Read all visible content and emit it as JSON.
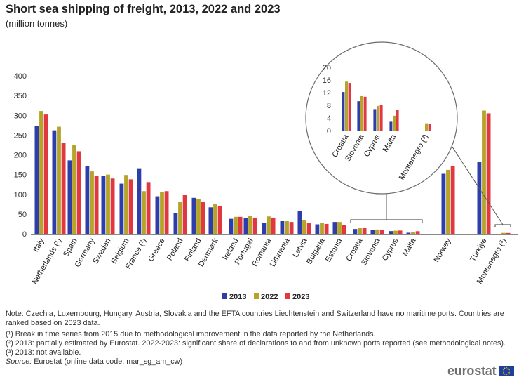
{
  "title": "Short sea shipping of freight, 2013, 2022 and 2023",
  "subtitle": "(million tonnes)",
  "colors": {
    "s2013": "#2E3DA8",
    "s2022": "#B5A42A",
    "s2023": "#E1383F",
    "axis": "#888888",
    "grid": "#dddddd"
  },
  "chart_data": {
    "type": "bar",
    "title": "Short sea shipping of freight, 2013, 2022 and 2023",
    "ylabel": "million tonnes",
    "ylim": [
      0,
      400
    ],
    "yticks": [
      0,
      50,
      100,
      150,
      200,
      250,
      300,
      350,
      400
    ],
    "categories": [
      "Italy",
      "Netherlands (¹)",
      "Spain",
      "Germany",
      "Sweden",
      "Belgium",
      "France (²)",
      "Greece",
      "Poland",
      "Finland",
      "Denmark",
      "Ireland",
      "Portugal",
      "Romania",
      "Lithuania",
      "Latvia",
      "Bulgaria",
      "Estonia",
      "Croatia",
      "Slovenia",
      "Cyprus",
      "Malta",
      "Norway",
      "Türkiye",
      "Montenegro (³)"
    ],
    "series": [
      {
        "name": "2013",
        "values": [
          272,
          262,
          186,
          171,
          146,
          127,
          166,
          95,
          53,
          91,
          67,
          38,
          40,
          27,
          32,
          57,
          24,
          30,
          12.2,
          9.3,
          6.8,
          2.8,
          152,
          183,
          null
        ]
      },
      {
        "name": "2022",
        "values": [
          311,
          271,
          225,
          158,
          150,
          149,
          108,
          106,
          81,
          88,
          75,
          43,
          45,
          44,
          32,
          35,
          27,
          30,
          15.5,
          10.9,
          7.8,
          4.7,
          162,
          312,
          2.3
        ]
      },
      {
        "name": "2023",
        "values": [
          302,
          231,
          209,
          147,
          140,
          138,
          131,
          108,
          99,
          80,
          70,
          43,
          41,
          41,
          30,
          28,
          25,
          22,
          15.1,
          10.7,
          8.2,
          6.6,
          171,
          305,
          2.1
        ]
      }
    ],
    "inset": {
      "categories": [
        "Croatia",
        "Slovenia",
        "Cyprus",
        "Malta",
        "Montenegro (³)"
      ],
      "ylim": [
        0,
        20
      ],
      "yticks": [
        0,
        4,
        8,
        12,
        16,
        20
      ]
    },
    "legend": [
      "2013",
      "2022",
      "2023"
    ],
    "legend_position": "bottom"
  },
  "notes": {
    "note": "Note: Czechia, Luxembourg, Hungary, Austria, Slovakia and the EFTA countries Liechtenstein and Switzerland have no maritime ports. Countries are ranked based on 2023 data.",
    "n1": "(¹) Break in time series from 2015 due to methodological improvement in the data reported by the Netherlands.",
    "n2": "(²) 2013: partially estimated by Eurostat. 2022-2023: significant share of declarations to and from unknown ports reported (see methodological notes).",
    "n3": "(³) 2013: not available.",
    "source_label": "Source:",
    "source_text": " Eurostat (online data code: mar_sg_am_cw)"
  },
  "logo_text": "eurostat"
}
